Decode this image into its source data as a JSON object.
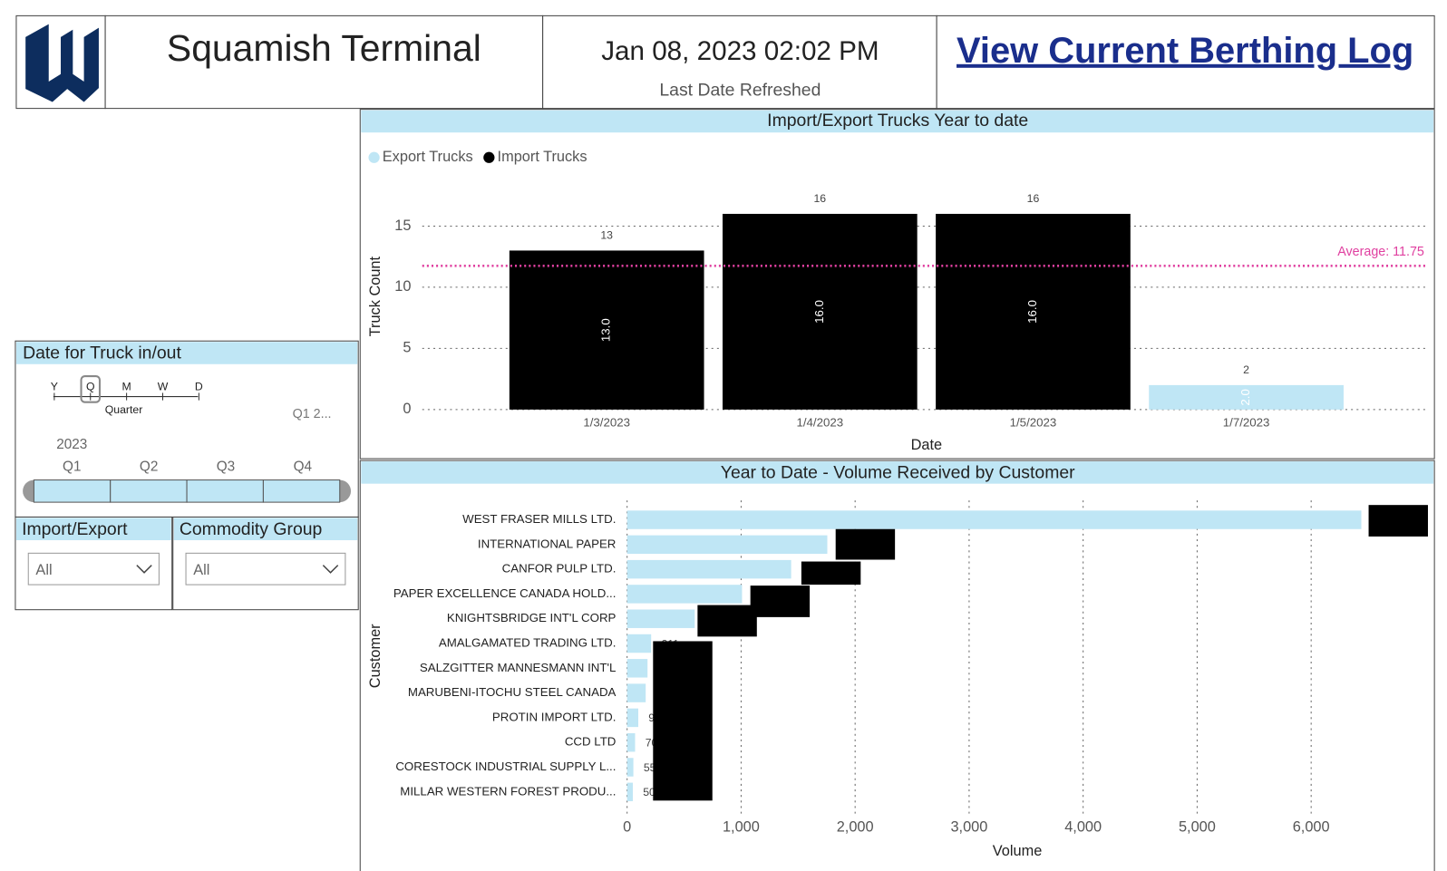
{
  "header": {
    "title": "Squamish Terminal",
    "refreshed_at": "Jan 08, 2023 02:02 PM",
    "refreshed_label": "Last Date Refreshed",
    "link": "View Current Berthing Log"
  },
  "date_slicer": {
    "title": "Date for Truck in/out",
    "granularity": [
      "Y",
      "Q",
      "M",
      "W",
      "D"
    ],
    "granularity_label": "Quarter",
    "selection": "Q1 2...",
    "year": "2023",
    "quarters": [
      "Q1",
      "Q2",
      "Q3",
      "Q4"
    ]
  },
  "filters": [
    {
      "title": "Import/Export",
      "value": "All"
    },
    {
      "title": "Commodity Group",
      "value": "All"
    }
  ],
  "chart_data": [
    {
      "type": "bar",
      "title": "Import/Export Trucks Year to date",
      "xlabel": "Date",
      "ylabel": "Truck Count",
      "categories": [
        "1/3/2023",
        "1/4/2023",
        "1/5/2023",
        "1/7/2023"
      ],
      "series": [
        {
          "name": "Export Trucks",
          "color": "#bfe6f5",
          "values": [
            null,
            null,
            null,
            2
          ],
          "value_labels": [
            null,
            null,
            null,
            "2.0"
          ]
        },
        {
          "name": "Import Trucks",
          "color": "#000000",
          "values": [
            13,
            16,
            16,
            null
          ],
          "value_labels": [
            "13.0",
            "16.0",
            "16.0",
            null
          ]
        }
      ],
      "average": {
        "value": 11.75,
        "label": "Average: 11.75",
        "color": "#e040a0"
      },
      "ylim": [
        0,
        18
      ],
      "yticks": [
        0,
        5,
        10,
        15
      ],
      "grid": true,
      "legend": "top-left"
    },
    {
      "type": "hbar",
      "title": "Year to Date - Volume Received by Customer",
      "xlabel": "Volume",
      "ylabel": "Customer",
      "categories": [
        "WEST FRASER MILLS LTD.",
        "INTERNATIONAL PAPER",
        "CANFOR PULP LTD.",
        "PAPER EXCELLENCE CANADA HOLD...",
        "KNIGHTSBRIDGE INT'L CORP",
        "AMALGAMATED TRADING LTD.",
        "SALZGITTER MANNESMANN INT'L",
        "MARUBENI-ITOCHU STEEL CANADA",
        "PROTIN IMPORT LTD.",
        "CCD LTD",
        "CORESTOCK INDUSTRIAL SUPPLY L...",
        "MILLAR WESTERN FOREST PRODU..."
      ],
      "color": "#bfe6f5",
      "values": [
        6440,
        1756,
        1439,
        1008,
        593,
        211,
        179,
        163,
        98,
        70,
        55,
        50
      ],
      "value_labels": [
        "6,440",
        "1,756",
        "1,439",
        "1,008",
        "593",
        "211",
        "179",
        "163",
        "98",
        "70",
        "55",
        "50"
      ],
      "xlim": [
        0,
        7000
      ],
      "xticks": [
        0,
        {
          "value": 1000,
          "label": "1,000"
        },
        {
          "value": 2000,
          "label": "2,000"
        },
        {
          "value": 3000,
          "label": "3,000"
        },
        {
          "value": 4000,
          "label": "4,000"
        },
        {
          "value": 5000,
          "label": "5,000"
        },
        {
          "value": 6000,
          "label": "6,000"
        }
      ],
      "grid": true
    }
  ]
}
